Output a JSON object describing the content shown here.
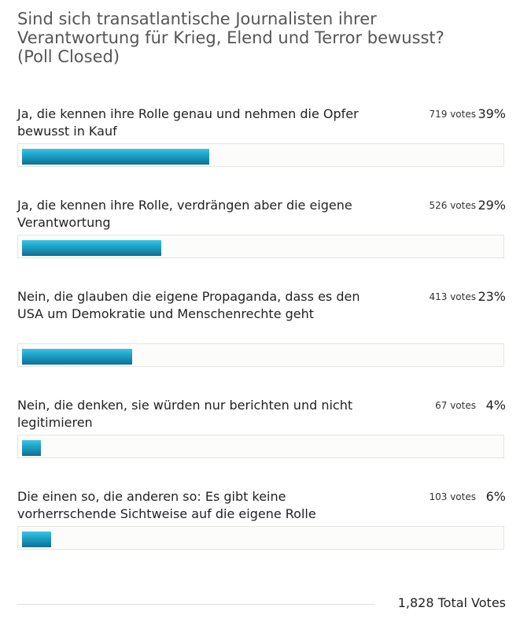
{
  "poll": {
    "title": "Sind sich transatlantische Journalisten ihrer Verantwortung für Krieg, Elend und Terror bewusst? (Poll Closed)",
    "answers": [
      {
        "label": "Ja, die kennen ihre Rolle genau und nehmen die Opfer bewusst in Kauf",
        "votes": "719 votes",
        "percent": "39%",
        "share": 0.39
      },
      {
        "label": "Ja, die kennen ihre Rolle, verdrängen aber die eigene Verantwortung",
        "votes": "526 votes",
        "percent": "29%",
        "share": 0.29
      },
      {
        "label": "Nein, die glauben die eigene Propaganda, dass es den USA um Demokratie und Menschenrechte geht",
        "votes": "413 votes",
        "percent": "23%",
        "share": 0.23
      },
      {
        "label": "Nein, die denken, sie würden nur berichten und nicht legitimieren",
        "votes": "67 votes",
        "percent": "4%",
        "share": 0.04
      },
      {
        "label": "Die einen so, die anderen so: Es gibt keine vorherrschende Sichtweise auf die eigene Rolle",
        "votes": "103 votes",
        "percent": "6%",
        "share": 0.06
      }
    ],
    "total": "1,828 Total Votes"
  },
  "colors": {
    "bar_top": "#3cc3e6",
    "bar_bottom": "#0f6f93",
    "title": "#555555"
  }
}
